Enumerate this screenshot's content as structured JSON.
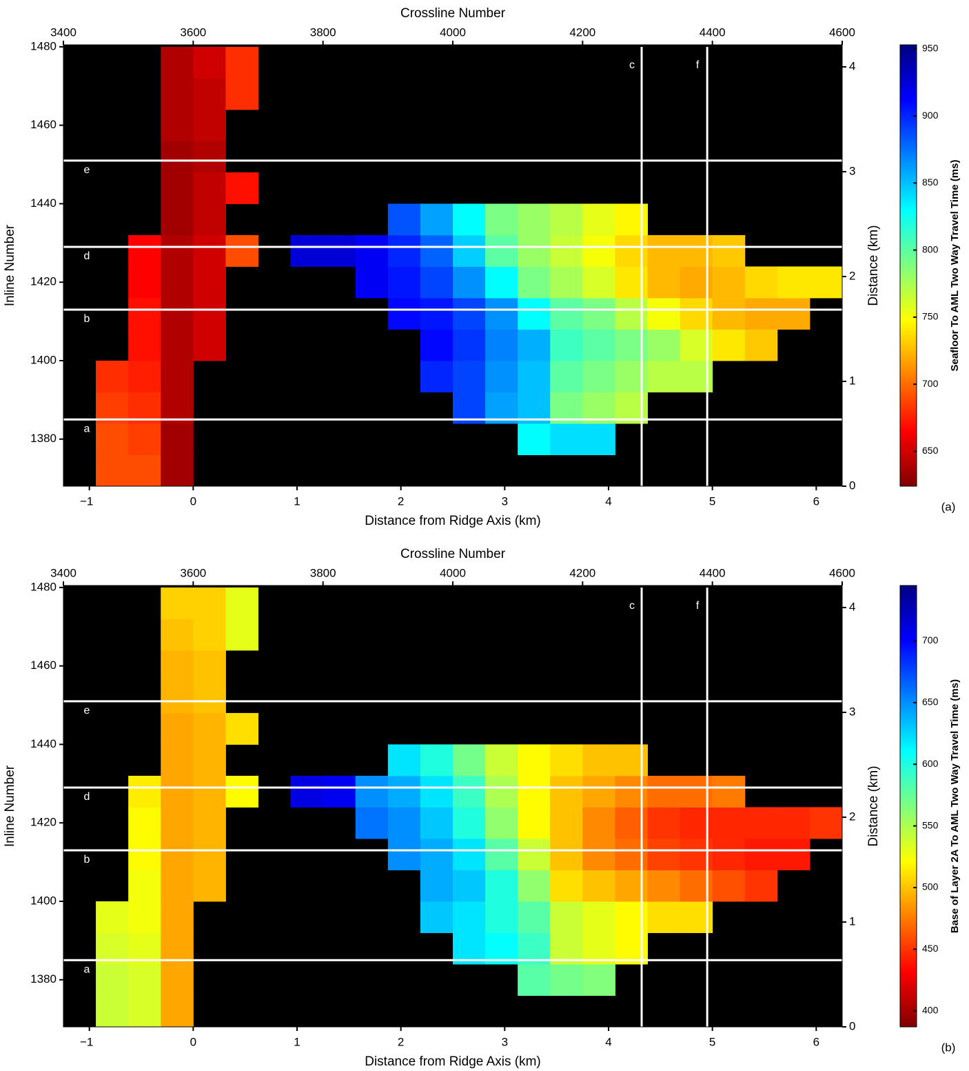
{
  "chart_data": [
    {
      "type": "heatmap",
      "top_axis_label": "Crossline Number",
      "x_label": "Distance from Ridge Axis (km)",
      "y_label": "Inline Number",
      "y2_label": "Distance (km)",
      "colorbar_label": "Seafloor To AML Two Way Travel Time (ms)",
      "panel_label": "(a)",
      "xlim": [
        3400,
        4600
      ],
      "xticks": [
        3400,
        3600,
        3800,
        4000,
        4200,
        4400,
        4600
      ],
      "x2lim": [
        -1.25,
        6.25
      ],
      "x2ticks": [
        {
          "value": -1,
          "label": "−1"
        },
        0,
        1,
        2,
        3,
        4,
        5,
        6
      ],
      "ylim": [
        1368,
        1480.5
      ],
      "yticks": [
        1380,
        1400,
        1420,
        1440,
        1460,
        1480
      ],
      "y2lim": [
        0,
        4.21
      ],
      "y2ticks": [
        0,
        1,
        2,
        3,
        4
      ],
      "clim": [
        624,
        953
      ],
      "cticks": [
        650,
        700,
        750,
        800,
        850,
        900,
        950
      ],
      "colormap": "jet_reversed",
      "xbins": [
        3400,
        3450,
        3500,
        3550,
        3600,
        3650,
        3700,
        3750,
        3800,
        3850,
        3900,
        3950,
        4000,
        4050,
        4100,
        4150,
        4200,
        4250,
        4300,
        4350,
        4400,
        4450,
        4500,
        4550,
        4600
      ],
      "ybins": [
        1368,
        1376,
        1384,
        1392,
        1400,
        1408,
        1416,
        1424,
        1432,
        1440,
        1448,
        1456,
        1464,
        1472,
        1480
      ],
      "z": [
        [
          null,
          690,
          690,
          635,
          null,
          null,
          null,
          null,
          null,
          null,
          null,
          null,
          null,
          null,
          null,
          null,
          null,
          null,
          null,
          null,
          null,
          null,
          null,
          null
        ],
        [
          null,
          690,
          685,
          635,
          null,
          null,
          null,
          null,
          null,
          null,
          null,
          null,
          null,
          null,
          830,
          840,
          840,
          null,
          null,
          null,
          null,
          null,
          null,
          null
        ],
        [
          null,
          685,
          680,
          640,
          null,
          null,
          null,
          null,
          null,
          null,
          null,
          null,
          890,
          860,
          850,
          790,
          780,
          770,
          null,
          null,
          null,
          null,
          null,
          null
        ],
        [
          null,
          680,
          675,
          640,
          null,
          null,
          null,
          null,
          null,
          null,
          null,
          900,
          890,
          865,
          850,
          800,
          790,
          780,
          770,
          770,
          null,
          null,
          null,
          null
        ],
        [
          null,
          null,
          670,
          640,
          650,
          null,
          null,
          null,
          null,
          null,
          null,
          910,
          895,
          870,
          855,
          810,
          800,
          790,
          780,
          760,
          740,
          730,
          null,
          null
        ],
        [
          null,
          null,
          670,
          640,
          650,
          null,
          null,
          null,
          null,
          null,
          910,
          905,
          890,
          865,
          830,
          800,
          790,
          770,
          750,
          735,
          725,
          720,
          720,
          null
        ],
        [
          null,
          null,
          665,
          640,
          650,
          null,
          null,
          null,
          null,
          915,
          905,
          890,
          865,
          830,
          790,
          775,
          760,
          740,
          725,
          720,
          725,
          735,
          740,
          740
        ],
        [
          null,
          null,
          665,
          640,
          650,
          690,
          null,
          925,
          925,
          915,
          900,
          880,
          845,
          800,
          780,
          765,
          750,
          735,
          725,
          725,
          730,
          null,
          null,
          null
        ],
        [
          null,
          null,
          null,
          635,
          645,
          null,
          null,
          null,
          null,
          null,
          885,
          860,
          830,
          790,
          780,
          770,
          755,
          745,
          null,
          null,
          null,
          null,
          null,
          null
        ],
        [
          null,
          null,
          null,
          635,
          645,
          670,
          null,
          null,
          null,
          null,
          null,
          null,
          null,
          null,
          null,
          null,
          null,
          null,
          null,
          null,
          null,
          null,
          null,
          null
        ],
        [
          null,
          null,
          null,
          635,
          640,
          null,
          null,
          null,
          null,
          null,
          null,
          null,
          null,
          null,
          null,
          null,
          null,
          null,
          null,
          null,
          null,
          null,
          null,
          null
        ],
        [
          null,
          null,
          null,
          640,
          645,
          null,
          null,
          null,
          null,
          null,
          null,
          null,
          null,
          null,
          null,
          null,
          null,
          null,
          null,
          null,
          null,
          null,
          null,
          null
        ],
        [
          null,
          null,
          null,
          640,
          645,
          680,
          null,
          null,
          null,
          null,
          null,
          null,
          null,
          null,
          null,
          null,
          null,
          null,
          null,
          null,
          null,
          null,
          null,
          null
        ],
        [
          null,
          null,
          null,
          640,
          650,
          680,
          null,
          null,
          null,
          null,
          null,
          null,
          null,
          null,
          null,
          null,
          null,
          null,
          null,
          null,
          null,
          null,
          null,
          null
        ]
      ],
      "inline_profiles": [
        {
          "label": "a",
          "value": 1385
        },
        {
          "label": "b",
          "value": 1413
        },
        {
          "label": "d",
          "value": 1429
        },
        {
          "label": "e",
          "value": 1451
        }
      ],
      "crossline_profiles": [
        {
          "label": "c",
          "value": 4291
        },
        {
          "label": "f",
          "value": 4392
        }
      ]
    },
    {
      "type": "heatmap",
      "top_axis_label": "Crossline Number",
      "x_label": "Distance from Ridge Axis (km)",
      "y_label": "Inline Number",
      "y2_label": "Distance (km)",
      "colorbar_label": "Base of Layer 2A To AML Two Way Travel Time (ms)",
      "panel_label": "(b)",
      "xlim": [
        3400,
        4600
      ],
      "xticks": [
        3400,
        3600,
        3800,
        4000,
        4200,
        4400,
        4600
      ],
      "x2lim": [
        -1.25,
        6.25
      ],
      "x2ticks": [
        {
          "value": -1,
          "label": "−1"
        },
        0,
        1,
        2,
        3,
        4,
        5,
        6
      ],
      "ylim": [
        1368,
        1480.5
      ],
      "yticks": [
        1380,
        1400,
        1420,
        1440,
        1460,
        1480
      ],
      "y2lim": [
        0,
        4.21
      ],
      "y2ticks": [
        0,
        1,
        2,
        3,
        4
      ],
      "clim": [
        387,
        745
      ],
      "cticks": [
        400,
        450,
        500,
        550,
        600,
        650,
        700
      ],
      "colormap": "jet_reversed",
      "xbins": [
        3400,
        3450,
        3500,
        3550,
        3600,
        3650,
        3700,
        3750,
        3800,
        3850,
        3900,
        3950,
        4000,
        4050,
        4100,
        4150,
        4200,
        4250,
        4300,
        4350,
        4400,
        4450,
        4500,
        4550,
        4600
      ],
      "ybins": [
        1368,
        1376,
        1384,
        1392,
        1400,
        1408,
        1416,
        1424,
        1432,
        1440,
        1448,
        1456,
        1464,
        1472,
        1480
      ],
      "z": [
        [
          null,
          540,
          535,
          490,
          null,
          null,
          null,
          null,
          null,
          null,
          null,
          null,
          null,
          null,
          null,
          null,
          null,
          null,
          null,
          null,
          null,
          null,
          null,
          null
        ],
        [
          null,
          540,
          535,
          490,
          null,
          null,
          null,
          null,
          null,
          null,
          null,
          null,
          null,
          null,
          580,
          570,
          565,
          null,
          null,
          null,
          null,
          null,
          null,
          null
        ],
        [
          null,
          535,
          530,
          490,
          null,
          null,
          null,
          null,
          null,
          null,
          null,
          null,
          620,
          610,
          590,
          540,
          530,
          520,
          null,
          null,
          null,
          null,
          null,
          null
        ],
        [
          null,
          530,
          525,
          490,
          null,
          null,
          null,
          null,
          null,
          null,
          null,
          630,
          620,
          600,
          580,
          540,
          530,
          520,
          510,
          510,
          null,
          null,
          null,
          null
        ],
        [
          null,
          null,
          525,
          490,
          495,
          null,
          null,
          null,
          null,
          null,
          null,
          640,
          630,
          600,
          560,
          510,
          500,
          490,
          480,
          470,
          460,
          450,
          null,
          null
        ],
        [
          null,
          null,
          520,
          490,
          495,
          null,
          null,
          null,
          null,
          null,
          650,
          640,
          620,
          580,
          540,
          500,
          480,
          470,
          455,
          450,
          445,
          440,
          440,
          null
        ],
        [
          null,
          null,
          520,
          490,
          495,
          null,
          null,
          null,
          null,
          660,
          650,
          630,
          600,
          560,
          520,
          500,
          480,
          465,
          450,
          445,
          445,
          445,
          445,
          450
        ],
        [
          null,
          null,
          515,
          490,
          495,
          520,
          null,
          710,
          705,
          650,
          640,
          620,
          590,
          550,
          520,
          500,
          490,
          480,
          470,
          470,
          475,
          null,
          null,
          null
        ],
        [
          null,
          null,
          null,
          490,
          495,
          null,
          null,
          null,
          null,
          null,
          620,
          600,
          570,
          540,
          520,
          510,
          500,
          500,
          null,
          null,
          null,
          null,
          null,
          null
        ],
        [
          null,
          null,
          null,
          490,
          495,
          510,
          null,
          null,
          null,
          null,
          null,
          null,
          null,
          null,
          null,
          null,
          null,
          null,
          null,
          null,
          null,
          null,
          null,
          null
        ],
        [
          null,
          null,
          null,
          495,
          500,
          null,
          null,
          null,
          null,
          null,
          null,
          null,
          null,
          null,
          null,
          null,
          null,
          null,
          null,
          null,
          null,
          null,
          null,
          null
        ],
        [
          null,
          null,
          null,
          495,
          500,
          null,
          null,
          null,
          null,
          null,
          null,
          null,
          null,
          null,
          null,
          null,
          null,
          null,
          null,
          null,
          null,
          null,
          null,
          null
        ],
        [
          null,
          null,
          null,
          500,
          505,
          530,
          null,
          null,
          null,
          null,
          null,
          null,
          null,
          null,
          null,
          null,
          null,
          null,
          null,
          null,
          null,
          null,
          null,
          null
        ],
        [
          null,
          null,
          null,
          505,
          505,
          530,
          null,
          null,
          null,
          null,
          null,
          null,
          null,
          null,
          null,
          null,
          null,
          null,
          null,
          null,
          null,
          null,
          null,
          null
        ]
      ],
      "inline_profiles": [
        {
          "label": "a",
          "value": 1385
        },
        {
          "label": "b",
          "value": 1413
        },
        {
          "label": "d",
          "value": 1429
        },
        {
          "label": "e",
          "value": 1451
        }
      ],
      "crossline_profiles": [
        {
          "label": "c",
          "value": 4291
        },
        {
          "label": "f",
          "value": 4392
        }
      ]
    }
  ]
}
